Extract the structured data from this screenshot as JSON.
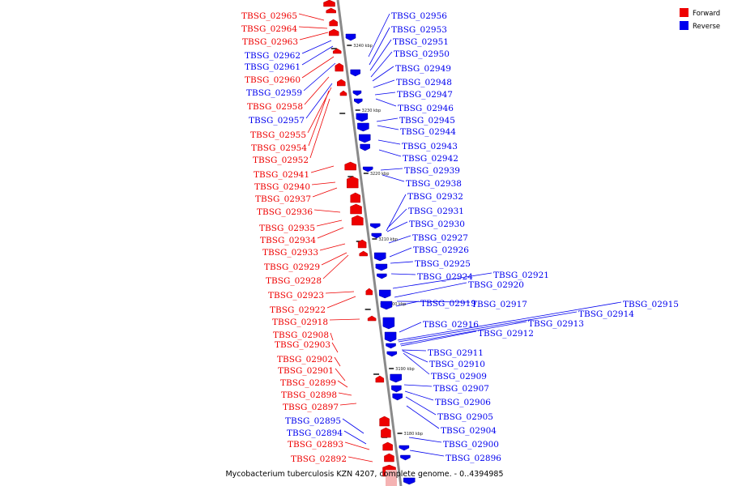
{
  "caption": "Mycobacterium tuberculosis KZN 4207, complete genome. - 0..4394985",
  "legend": [
    {
      "label": "Forward",
      "color": "#ee0000"
    },
    {
      "label": "Reverse",
      "color": "#0000ee"
    }
  ],
  "colors": {
    "forward": "#ee0000",
    "reverse": "#0000ee",
    "axis": "#888888"
  },
  "ticks": [
    "3240 kbp",
    "3230 kbp",
    "3220 kbp",
    "3210 kbp",
    "3200 kbp",
    "3190 kbp",
    "3180 kbp"
  ],
  "forward_genes": [
    "TBSG_02965",
    "TBSG_02964",
    "TBSG_02963",
    "TBSG_02962",
    "TBSG_02961",
    "TBSG_02960",
    "TBSG_02959",
    "TBSG_02958",
    "TBSG_02957",
    "TBSG_02955",
    "TBSG_02954",
    "TBSG_02952",
    "TBSG_02941",
    "TBSG_02940",
    "TBSG_02937",
    "TBSG_02936",
    "TBSG_02935",
    "TBSG_02934",
    "TBSG_02933",
    "TBSG_02929",
    "TBSG_02928",
    "TBSG_02923",
    "TBSG_02922",
    "TBSG_02918",
    "TBSG_02908",
    "TBSG_02903",
    "TBSG_02902",
    "TBSG_02901",
    "TBSG_02899",
    "TBSG_02898",
    "TBSG_02897",
    "TBSG_02895",
    "TBSG_02894",
    "TBSG_02893",
    "TBSG_02892"
  ],
  "forward_strand": [
    "forward",
    "forward",
    "forward",
    "reverse",
    "reverse",
    "forward",
    "reverse",
    "forward",
    "reverse",
    "forward",
    "forward",
    "forward",
    "forward",
    "forward",
    "forward",
    "forward",
    "forward",
    "forward",
    "forward",
    "forward",
    "forward",
    "forward",
    "forward",
    "forward",
    "forward",
    "forward",
    "forward",
    "forward",
    "forward",
    "forward",
    "forward",
    "reverse",
    "reverse",
    "forward",
    "forward"
  ],
  "reverse_genes": [
    "TBSG_02956",
    "TBSG_02953",
    "TBSG_02951",
    "TBSG_02950",
    "TBSG_02949",
    "TBSG_02948",
    "TBSG_02947",
    "TBSG_02946",
    "TBSG_02945",
    "TBSG_02944",
    "TBSG_02943",
    "TBSG_02942",
    "TBSG_02939",
    "TBSG_02938",
    "TBSG_02932",
    "TBSG_02931",
    "TBSG_02930",
    "TBSG_02927",
    "TBSG_02926",
    "TBSG_02925",
    "TBSG_02924",
    "TBSG_02921",
    "TBSG_02920",
    "TBSG_02919",
    "TBSG_02917",
    "TBSG_02915",
    "TBSG_02914",
    "TBSG_02916",
    "TBSG_02913",
    "TBSG_02912",
    "TBSG_02911",
    "TBSG_02910",
    "TBSG_02909",
    "TBSG_02907",
    "TBSG_02906",
    "TBSG_02905",
    "TBSG_02904",
    "TBSG_02900",
    "TBSG_02896"
  ]
}
